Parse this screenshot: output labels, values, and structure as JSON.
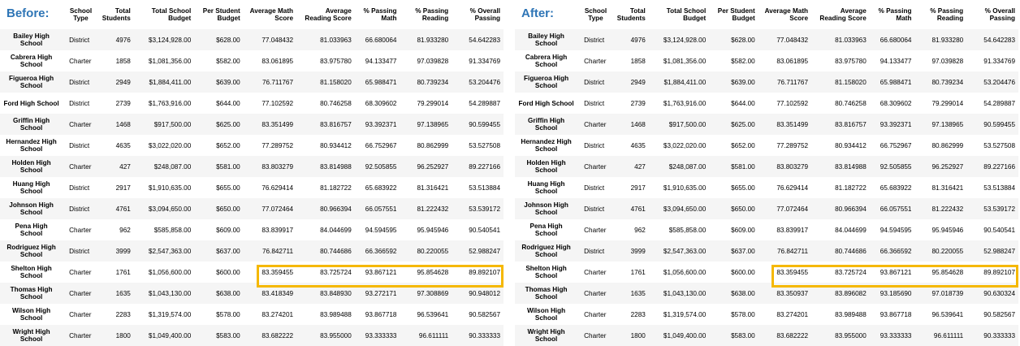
{
  "columns": [
    "",
    "School Type",
    "Total Students",
    "Total School Budget",
    "Per Student Budget",
    "Average Math Score",
    "Average Reading Score",
    "% Passing Math",
    "% Passing Reading",
    "% Overall Passing"
  ],
  "colors": {
    "title": "#2e75b6",
    "highlight": "#f5b800"
  },
  "panels": [
    {
      "title": "Before:",
      "highlight_row": 12,
      "rows": [
        [
          "Bailey High School",
          "District",
          "4976",
          "$3,124,928.00",
          "$628.00",
          "77.048432",
          "81.033963",
          "66.680064",
          "81.933280",
          "54.642283"
        ],
        [
          "Cabrera High School",
          "Charter",
          "1858",
          "$1,081,356.00",
          "$582.00",
          "83.061895",
          "83.975780",
          "94.133477",
          "97.039828",
          "91.334769"
        ],
        [
          "Figueroa High School",
          "District",
          "2949",
          "$1,884,411.00",
          "$639.00",
          "76.711767",
          "81.158020",
          "65.988471",
          "80.739234",
          "53.204476"
        ],
        [
          "Ford High School",
          "District",
          "2739",
          "$1,763,916.00",
          "$644.00",
          "77.102592",
          "80.746258",
          "68.309602",
          "79.299014",
          "54.289887"
        ],
        [
          "Griffin High School",
          "Charter",
          "1468",
          "$917,500.00",
          "$625.00",
          "83.351499",
          "83.816757",
          "93.392371",
          "97.138965",
          "90.599455"
        ],
        [
          "Hernandez High School",
          "District",
          "4635",
          "$3,022,020.00",
          "$652.00",
          "77.289752",
          "80.934412",
          "66.752967",
          "80.862999",
          "53.527508"
        ],
        [
          "Holden High School",
          "Charter",
          "427",
          "$248,087.00",
          "$581.00",
          "83.803279",
          "83.814988",
          "92.505855",
          "96.252927",
          "89.227166"
        ],
        [
          "Huang High School",
          "District",
          "2917",
          "$1,910,635.00",
          "$655.00",
          "76.629414",
          "81.182722",
          "65.683922",
          "81.316421",
          "53.513884"
        ],
        [
          "Johnson High School",
          "District",
          "4761",
          "$3,094,650.00",
          "$650.00",
          "77.072464",
          "80.966394",
          "66.057551",
          "81.222432",
          "53.539172"
        ],
        [
          "Pena High School",
          "Charter",
          "962",
          "$585,858.00",
          "$609.00",
          "83.839917",
          "84.044699",
          "94.594595",
          "95.945946",
          "90.540541"
        ],
        [
          "Rodriguez High School",
          "District",
          "3999",
          "$2,547,363.00",
          "$637.00",
          "76.842711",
          "80.744686",
          "66.366592",
          "80.220055",
          "52.988247"
        ],
        [
          "Shelton High School",
          "Charter",
          "1761",
          "$1,056,600.00",
          "$600.00",
          "83.359455",
          "83.725724",
          "93.867121",
          "95.854628",
          "89.892107"
        ],
        [
          "Thomas High School",
          "Charter",
          "1635",
          "$1,043,130.00",
          "$638.00",
          "83.418349",
          "83.848930",
          "93.272171",
          "97.308869",
          "90.948012"
        ],
        [
          "Wilson High School",
          "Charter",
          "2283",
          "$1,319,574.00",
          "$578.00",
          "83.274201",
          "83.989488",
          "93.867718",
          "96.539641",
          "90.582567"
        ],
        [
          "Wright High School",
          "Charter",
          "1800",
          "$1,049,400.00",
          "$583.00",
          "83.682222",
          "83.955000",
          "93.333333",
          "96.611111",
          "90.333333"
        ]
      ]
    },
    {
      "title": "After:",
      "highlight_row": 12,
      "rows": [
        [
          "Bailey High School",
          "District",
          "4976",
          "$3,124,928.00",
          "$628.00",
          "77.048432",
          "81.033963",
          "66.680064",
          "81.933280",
          "54.642283"
        ],
        [
          "Cabrera High School",
          "Charter",
          "1858",
          "$1,081,356.00",
          "$582.00",
          "83.061895",
          "83.975780",
          "94.133477",
          "97.039828",
          "91.334769"
        ],
        [
          "Figueroa High School",
          "District",
          "2949",
          "$1,884,411.00",
          "$639.00",
          "76.711767",
          "81.158020",
          "65.988471",
          "80.739234",
          "53.204476"
        ],
        [
          "Ford High School",
          "District",
          "2739",
          "$1,763,916.00",
          "$644.00",
          "77.102592",
          "80.746258",
          "68.309602",
          "79.299014",
          "54.289887"
        ],
        [
          "Griffin High School",
          "Charter",
          "1468",
          "$917,500.00",
          "$625.00",
          "83.351499",
          "83.816757",
          "93.392371",
          "97.138965",
          "90.599455"
        ],
        [
          "Hernandez High School",
          "District",
          "4635",
          "$3,022,020.00",
          "$652.00",
          "77.289752",
          "80.934412",
          "66.752967",
          "80.862999",
          "53.527508"
        ],
        [
          "Holden High School",
          "Charter",
          "427",
          "$248,087.00",
          "$581.00",
          "83.803279",
          "83.814988",
          "92.505855",
          "96.252927",
          "89.227166"
        ],
        [
          "Huang High School",
          "District",
          "2917",
          "$1,910,635.00",
          "$655.00",
          "76.629414",
          "81.182722",
          "65.683922",
          "81.316421",
          "53.513884"
        ],
        [
          "Johnson High School",
          "District",
          "4761",
          "$3,094,650.00",
          "$650.00",
          "77.072464",
          "80.966394",
          "66.057551",
          "81.222432",
          "53.539172"
        ],
        [
          "Pena High School",
          "Charter",
          "962",
          "$585,858.00",
          "$609.00",
          "83.839917",
          "84.044699",
          "94.594595",
          "95.945946",
          "90.540541"
        ],
        [
          "Rodriguez High School",
          "District",
          "3999",
          "$2,547,363.00",
          "$637.00",
          "76.842711",
          "80.744686",
          "66.366592",
          "80.220055",
          "52.988247"
        ],
        [
          "Shelton High School",
          "Charter",
          "1761",
          "$1,056,600.00",
          "$600.00",
          "83.359455",
          "83.725724",
          "93.867121",
          "95.854628",
          "89.892107"
        ],
        [
          "Thomas High School",
          "Charter",
          "1635",
          "$1,043,130.00",
          "$638.00",
          "83.350937",
          "83.896082",
          "93.185690",
          "97.018739",
          "90.630324"
        ],
        [
          "Wilson High School",
          "Charter",
          "2283",
          "$1,319,574.00",
          "$578.00",
          "83.274201",
          "83.989488",
          "93.867718",
          "96.539641",
          "90.582567"
        ],
        [
          "Wright High School",
          "Charter",
          "1800",
          "$1,049,400.00",
          "$583.00",
          "83.682222",
          "83.955000",
          "93.333333",
          "96.611111",
          "90.333333"
        ]
      ]
    }
  ]
}
